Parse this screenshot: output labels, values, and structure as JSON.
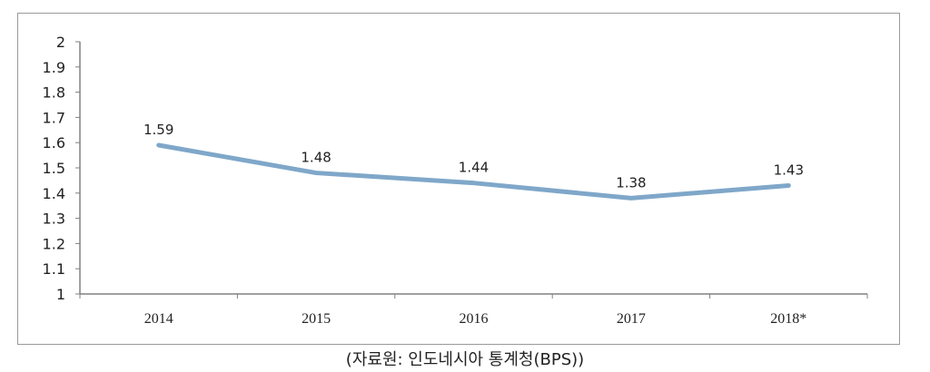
{
  "chart_data": {
    "type": "line",
    "categories": [
      "2014",
      "2015",
      "2016",
      "2017",
      "2018*"
    ],
    "series": [
      {
        "values": [
          1.59,
          1.48,
          1.44,
          1.38,
          1.43
        ],
        "color": "#7fa7c9"
      }
    ],
    "data_labels": [
      "1.59",
      "1.48",
      "1.44",
      "1.38",
      "1.43"
    ],
    "y_ticks": [
      "1",
      "1.1",
      "1.2",
      "1.3",
      "1.4",
      "1.5",
      "1.6",
      "1.7",
      "1.8",
      "1.9",
      "2"
    ],
    "ylim": [
      1,
      2
    ],
    "grid": false,
    "legend": "none",
    "xlabel": "",
    "ylabel": ""
  },
  "source": "(자료원: 인도네시아 통계청(BPS))"
}
